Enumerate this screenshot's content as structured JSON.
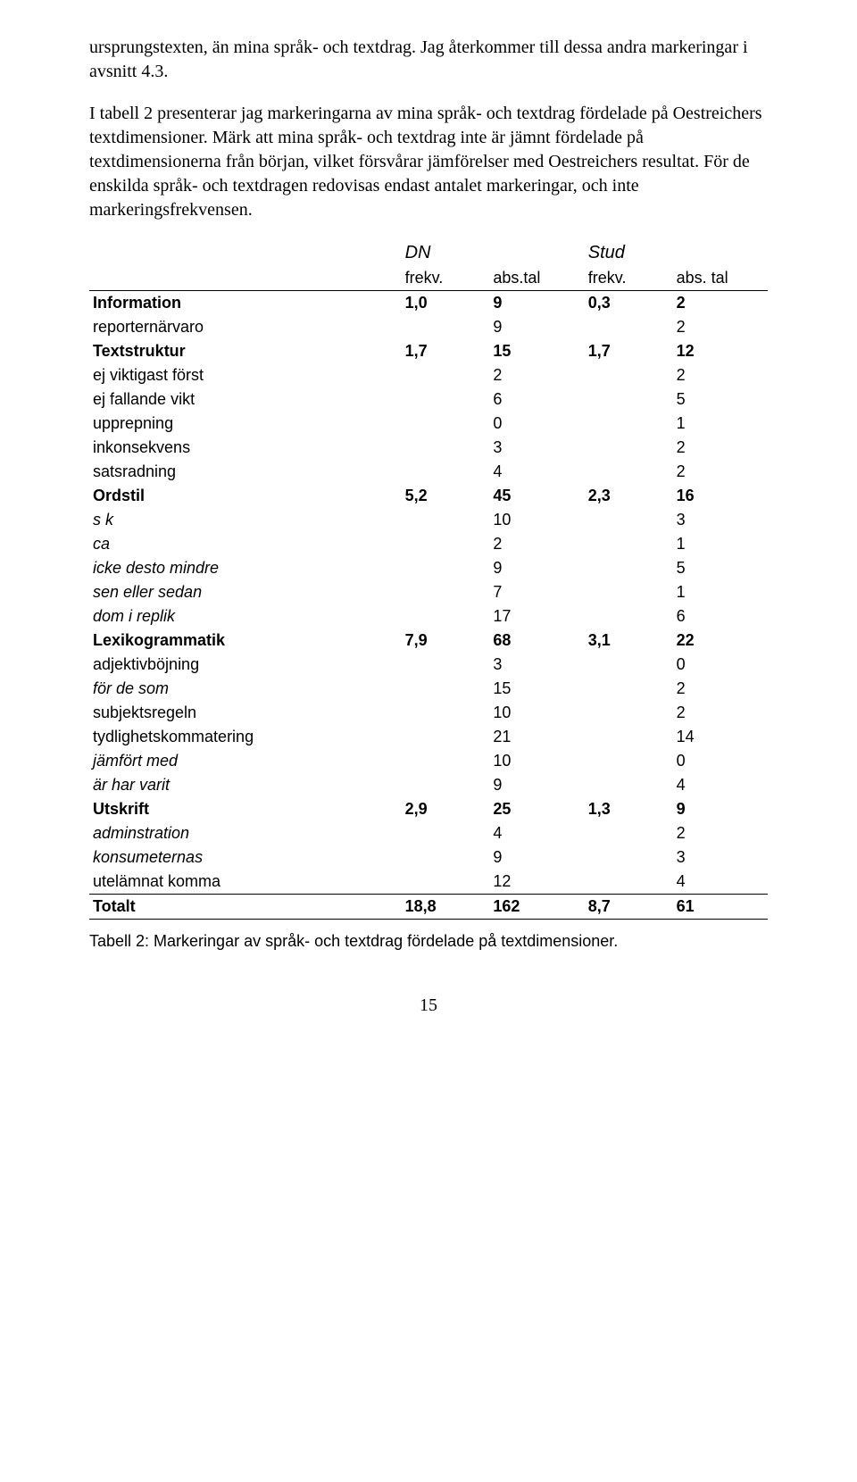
{
  "paragraphs": {
    "p1": "ursprungstexten, än mina språk- och textdrag. Jag återkommer till dessa andra markeringar i avsnitt 4.3.",
    "p2": "I tabell 2 presenterar jag markeringarna av mina språk- och textdrag fördelade på Oestreichers textdimensioner. Märk att mina språk- och textdrag inte är jämnt fördelade på textdimensionerna från början, vilket försvårar jämförelser med Oestreichers resultat. För de enskilda språk- och textdragen redovisas endast antalet markeringar, och inte markeringsfrekvensen."
  },
  "table": {
    "header": {
      "dn": "DN",
      "stud": "Stud"
    },
    "subheader": {
      "c1": "frekv.",
      "c2": "abs.tal",
      "c3": "frekv.",
      "c4": "abs. tal"
    },
    "sections": [
      {
        "title": "Information",
        "title_vals": [
          "1,0",
          "9",
          "0,3",
          "2"
        ],
        "rows": [
          {
            "label": "reporternärvaro",
            "italic": false,
            "vals": [
              "",
              "9",
              "",
              "2"
            ]
          }
        ]
      },
      {
        "title": "Textstruktur",
        "title_vals": [
          "1,7",
          "15",
          "1,7",
          "12"
        ],
        "rows": [
          {
            "label": "ej viktigast först",
            "italic": false,
            "vals": [
              "",
              "2",
              "",
              "2"
            ]
          },
          {
            "label": "ej fallande vikt",
            "italic": false,
            "vals": [
              "",
              "6",
              "",
              "5"
            ]
          },
          {
            "label": "upprepning",
            "italic": false,
            "vals": [
              "",
              "0",
              "",
              "1"
            ]
          },
          {
            "label": "inkonsekvens",
            "italic": false,
            "vals": [
              "",
              "3",
              "",
              "2"
            ]
          },
          {
            "label": "satsradning",
            "italic": false,
            "vals": [
              "",
              "4",
              "",
              "2"
            ]
          }
        ]
      },
      {
        "title": "Ordstil",
        "title_vals": [
          "5,2",
          "45",
          "2,3",
          "16"
        ],
        "rows": [
          {
            "label": "s k",
            "italic": true,
            "vals": [
              "",
              "10",
              "",
              "3"
            ]
          },
          {
            "label": "ca",
            "italic": true,
            "vals": [
              "",
              "2",
              "",
              "1"
            ]
          },
          {
            "label": "icke desto mindre",
            "italic": true,
            "vals": [
              "",
              "9",
              "",
              "5"
            ]
          },
          {
            "label": "sen eller sedan",
            "italic": true,
            "vals": [
              "",
              "7",
              "",
              "1"
            ]
          },
          {
            "label": "dom i replik",
            "italic": true,
            "vals": [
              "",
              "17",
              "",
              "6"
            ]
          }
        ]
      },
      {
        "title": "Lexikogrammatik",
        "title_vals": [
          "7,9",
          "68",
          "3,1",
          "22"
        ],
        "rows": [
          {
            "label": "adjektivböjning",
            "italic": false,
            "vals": [
              "",
              "3",
              "",
              "0"
            ]
          },
          {
            "label": "för de som",
            "italic": true,
            "vals": [
              "",
              "15",
              "",
              "2"
            ]
          },
          {
            "label": "subjektsregeln",
            "italic": false,
            "vals": [
              "",
              "10",
              "",
              "2"
            ]
          },
          {
            "label": "tydlighetskommatering",
            "italic": false,
            "vals": [
              "",
              "21",
              "",
              "14"
            ]
          },
          {
            "label": "jämfört med",
            "italic": true,
            "vals": [
              "",
              "10",
              "",
              "0"
            ]
          },
          {
            "label": "är har varit",
            "italic": true,
            "vals": [
              "",
              "9",
              "",
              "4"
            ]
          }
        ]
      },
      {
        "title": "Utskrift",
        "title_vals": [
          "2,9",
          "25",
          "1,3",
          "9"
        ],
        "rows": [
          {
            "label": "adminstration",
            "italic": true,
            "vals": [
              "",
              "4",
              "",
              "2"
            ]
          },
          {
            "label": "konsumeternas",
            "italic": true,
            "vals": [
              "",
              "9",
              "",
              "3"
            ]
          },
          {
            "label": "utelämnat komma",
            "italic": false,
            "vals": [
              "",
              "12",
              "",
              "4"
            ]
          }
        ]
      }
    ],
    "total": {
      "label": "Totalt",
      "vals": [
        "18,8",
        "162",
        "8,7",
        "61"
      ]
    }
  },
  "caption": "Tabell 2: Markeringar av språk- och textdrag fördelade på textdimensioner.",
  "page_number": "15"
}
